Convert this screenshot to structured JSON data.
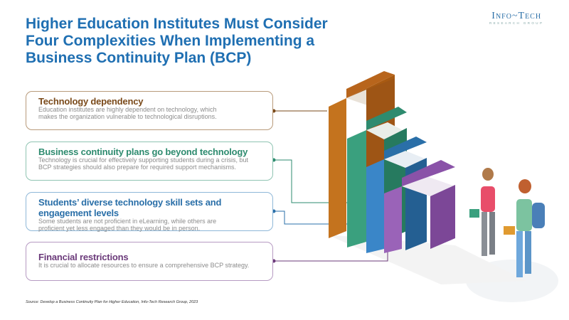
{
  "title": "Higher Education Institutes Must Consider Four Complexities When Implementing a Business Continuity Plan (BCP)",
  "logo": {
    "main": "Info~Tech",
    "sub": "RESEARCH GROUP"
  },
  "complexities": [
    {
      "heading": "Technology dependency",
      "body": "Education institutes are highly dependent on technology, which makes the organization vulnerable to technological disruptions.",
      "color": "#7a4a1a"
    },
    {
      "heading": "Business continuity plans go beyond technology",
      "body": "Technology is crucial for effectively supporting students during a crisis, but BCP strategies should also prepare for required support mechanisms.",
      "color": "#2e8b6f"
    },
    {
      "heading": "Students’ diverse technology skill sets and engagement levels",
      "body": "Some students are not proficient in eLearning, while others are proficient yet less engaged than they would be in person.",
      "color": "#2a6fa8"
    },
    {
      "heading": "Financial restrictions",
      "body": "It is crucial to allocate resources to ensure a comprehensive BCP strategy.",
      "color": "#6b3a7a"
    }
  ],
  "source": "Source: Develop a Business Continuity Plan for Higher Education, Info-Tech Research Group, 2023"
}
